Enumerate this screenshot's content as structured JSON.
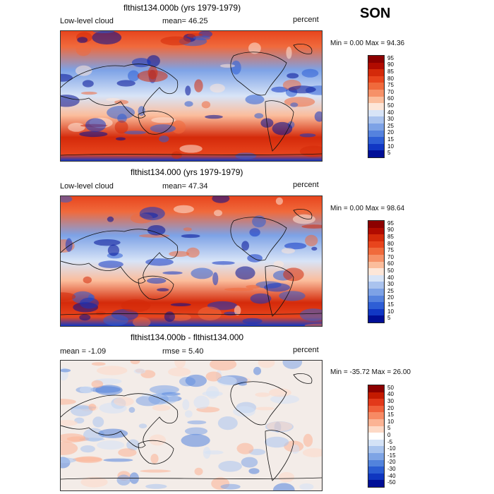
{
  "season": "SON",
  "panels": [
    {
      "title": "flthist134.000b (yrs 1979-1979)",
      "left": "Low-level cloud",
      "middle": "mean=  46.25",
      "units": "percent",
      "minmax": "Min =    0.00 Max =   94.36",
      "kind": "abs",
      "colorbar": [
        "95",
        "90",
        "85",
        "80",
        "75",
        "70",
        "60",
        "50",
        "40",
        "30",
        "25",
        "20",
        "15",
        "10",
        "5"
      ],
      "colors": [
        "#8c0000",
        "#b10b00",
        "#d42a0a",
        "#e8451d",
        "#f06a3c",
        "#f69168",
        "#fbbd9c",
        "#fde6d8",
        "#d8e4f7",
        "#aac3ee",
        "#7da2e6",
        "#5582de",
        "#2e5ed5",
        "#1137c4",
        "#000e96"
      ]
    },
    {
      "title": "flthist134.000 (yrs 1979-1979)",
      "left": "Low-level cloud",
      "middle": "mean=  47.34",
      "units": "percent",
      "minmax": "Min =    0.00 Max =   98.64",
      "kind": "abs",
      "colorbar": [
        "95",
        "90",
        "85",
        "80",
        "75",
        "70",
        "60",
        "50",
        "40",
        "30",
        "25",
        "20",
        "15",
        "10",
        "5"
      ],
      "colors": [
        "#8c0000",
        "#b10b00",
        "#d42a0a",
        "#e8451d",
        "#f06a3c",
        "#f69168",
        "#fbbd9c",
        "#fde6d8",
        "#d8e4f7",
        "#aac3ee",
        "#7da2e6",
        "#5582de",
        "#2e5ed5",
        "#1137c4",
        "#000e96"
      ]
    },
    {
      "title": "flthist134.000b - flthist134.000",
      "left": "mean =   -1.09",
      "middle": "rmse =    5.40",
      "units": "percent",
      "minmax": "Min =  -35.72 Max =   26.00",
      "kind": "diff",
      "colorbar": [
        "50",
        "40",
        "30",
        "20",
        "15",
        "10",
        "5",
        "0",
        "-5",
        "-10",
        "-15",
        "-20",
        "-30",
        "-40",
        "-50"
      ],
      "colors": [
        "#8c0000",
        "#c41a00",
        "#e2391a",
        "#f0603a",
        "#f78a64",
        "#fbb394",
        "#fdd9c6",
        "#ffffff",
        "#d4e2f6",
        "#a9c4ee",
        "#7ea4e5",
        "#5283dc",
        "#2a5cd2",
        "#0f36c0",
        "#000e96"
      ]
    }
  ]
}
